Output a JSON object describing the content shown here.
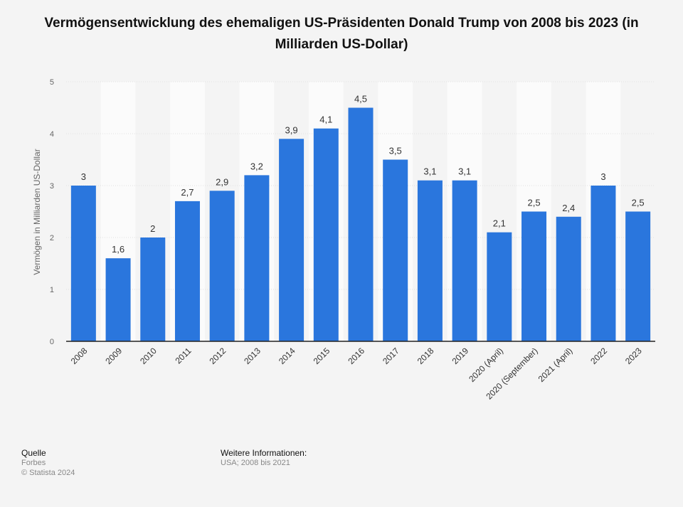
{
  "chart_data": {
    "type": "bar",
    "title": "Vermögensentwicklung des ehemaligen US-Präsidenten Donald Trump von 2008 bis 2023 (in Milliarden US-Dollar)",
    "xlabel": "",
    "ylabel": "Vermögen in Milliarden US-Dollar",
    "ylim": [
      0,
      5
    ],
    "yticks": [
      "0",
      "1",
      "2",
      "3",
      "4",
      "5"
    ],
    "categories": [
      "2008",
      "2009",
      "2010",
      "2011",
      "2012",
      "2013",
      "2014",
      "2015",
      "2016",
      "2017",
      "2018",
      "2019",
      "2020 (April)",
      "2020 (September)",
      "2021 (April)",
      "2022",
      "2023"
    ],
    "values": [
      3,
      1.6,
      2,
      2.7,
      2.9,
      3.2,
      3.9,
      4.1,
      4.5,
      3.5,
      3.1,
      3.1,
      2.1,
      2.5,
      2.4,
      3,
      2.5
    ],
    "value_labels": [
      "3",
      "1,6",
      "2",
      "2,7",
      "2,9",
      "3,2",
      "3,9",
      "4,1",
      "4,5",
      "3,5",
      "3,1",
      "3,1",
      "2,1",
      "2,5",
      "2,4",
      "3",
      "2,5"
    ],
    "bar_color": "#2a76dd",
    "grid": true
  },
  "footer": {
    "source_heading": "Quelle",
    "source": "Forbes",
    "copyright": "© Statista 2024",
    "info_heading": "Weitere Informationen:",
    "info": "USA; 2008 bis 2021"
  }
}
